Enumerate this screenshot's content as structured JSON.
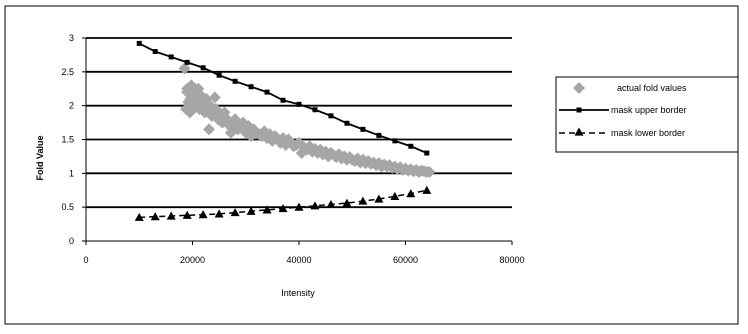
{
  "chart_data": {
    "type": "scatter",
    "title": "",
    "xlabel": "Intensity",
    "ylabel": "Fold Value",
    "xlim": [
      0,
      80000
    ],
    "ylim": [
      0,
      3
    ],
    "x_ticks": [
      "0",
      "20000",
      "40000",
      "60000",
      "80000"
    ],
    "y_ticks": [
      "0",
      "0.5",
      "1",
      "1.5",
      "2",
      "2.5",
      "3"
    ],
    "grid": "horizontal",
    "legend_position": "right",
    "colors": {
      "actual": "#a6a6a6",
      "upper": "#000000",
      "lower": "#000000"
    },
    "series": [
      {
        "name": "actual fold values",
        "marker": "diamond",
        "x": [
          18500,
          18800,
          19000,
          19200,
          19500,
          19800,
          20000,
          20300,
          20500,
          20800,
          21000,
          21300,
          21600,
          22000,
          22300,
          22600,
          23000,
          23300,
          23600,
          24000,
          24400,
          24800,
          25200,
          25600,
          26000,
          26500,
          27000,
          27500,
          28000,
          28500,
          29000,
          29500,
          30000,
          30500,
          31000,
          31500,
          32000,
          32500,
          33000,
          33500,
          34000,
          34500,
          35000,
          35500,
          36000,
          36500,
          37000,
          37500,
          38000,
          38500,
          39000,
          39500,
          40000,
          40500,
          41000,
          41500,
          42000,
          42500,
          43000,
          43500,
          44000,
          44500,
          45000,
          45500,
          46000,
          46500,
          47000,
          47500,
          48000,
          48500,
          49000,
          49500,
          50000,
          50500,
          51000,
          51500,
          52000,
          52500,
          53000,
          53500,
          54000,
          54500,
          55000,
          55500,
          56000,
          56500,
          57000,
          57500,
          58000,
          58500,
          59000,
          59500,
          60000,
          60500,
          61000,
          61500,
          62000,
          62500,
          63000,
          63500,
          64000,
          64500,
          19000,
          19600,
          20200,
          21100,
          22500,
          23100,
          24200,
          25000,
          27200,
          29800
        ],
        "y": [
          2.55,
          1.95,
          2.2,
          2.05,
          1.9,
          2.3,
          2.05,
          2.15,
          2.0,
          2.2,
          2.05,
          1.95,
          2.15,
          2.05,
          1.9,
          2.1,
          1.95,
          2.0,
          1.85,
          1.9,
          1.95,
          1.8,
          1.85,
          1.75,
          1.9,
          1.8,
          1.7,
          1.75,
          1.8,
          1.65,
          1.7,
          1.75,
          1.6,
          1.7,
          1.55,
          1.65,
          1.6,
          1.58,
          1.55,
          1.62,
          1.52,
          1.58,
          1.48,
          1.55,
          1.5,
          1.45,
          1.52,
          1.42,
          1.5,
          1.45,
          1.4,
          1.42,
          1.45,
          1.3,
          1.38,
          1.35,
          1.4,
          1.32,
          1.36,
          1.3,
          1.35,
          1.28,
          1.32,
          1.25,
          1.3,
          1.27,
          1.24,
          1.28,
          1.22,
          1.25,
          1.2,
          1.24,
          1.2,
          1.18,
          1.22,
          1.16,
          1.2,
          1.15,
          1.18,
          1.14,
          1.16,
          1.12,
          1.15,
          1.1,
          1.13,
          1.1,
          1.12,
          1.08,
          1.1,
          1.06,
          1.09,
          1.05,
          1.07,
          1.04,
          1.06,
          1.03,
          1.05,
          1.02,
          1.04,
          1.03,
          1.02,
          1.02,
          2.25,
          2.1,
          1.95,
          2.25,
          2.0,
          1.65,
          2.12,
          1.85,
          1.6,
          1.7
        ]
      },
      {
        "name": "mask upper border",
        "marker": "square",
        "line": "solid",
        "x": [
          10000,
          13000,
          16000,
          19000,
          22000,
          25000,
          28000,
          31000,
          34000,
          37000,
          40000,
          43000,
          46000,
          49000,
          52000,
          55000,
          58000,
          61000,
          64000
        ],
        "y": [
          2.92,
          2.8,
          2.72,
          2.64,
          2.56,
          2.45,
          2.36,
          2.28,
          2.2,
          2.08,
          2.02,
          1.94,
          1.85,
          1.74,
          1.65,
          1.56,
          1.48,
          1.4,
          1.3
        ]
      },
      {
        "name": "mask lower border",
        "marker": "triangle",
        "line": "dashed",
        "x": [
          10000,
          13000,
          16000,
          19000,
          22000,
          25000,
          28000,
          31000,
          34000,
          37000,
          40000,
          43000,
          46000,
          49000,
          52000,
          55000,
          58000,
          61000,
          64000
        ],
        "y": [
          0.35,
          0.36,
          0.37,
          0.38,
          0.39,
          0.4,
          0.42,
          0.44,
          0.46,
          0.48,
          0.5,
          0.52,
          0.54,
          0.56,
          0.59,
          0.62,
          0.66,
          0.7,
          0.75
        ]
      }
    ]
  }
}
